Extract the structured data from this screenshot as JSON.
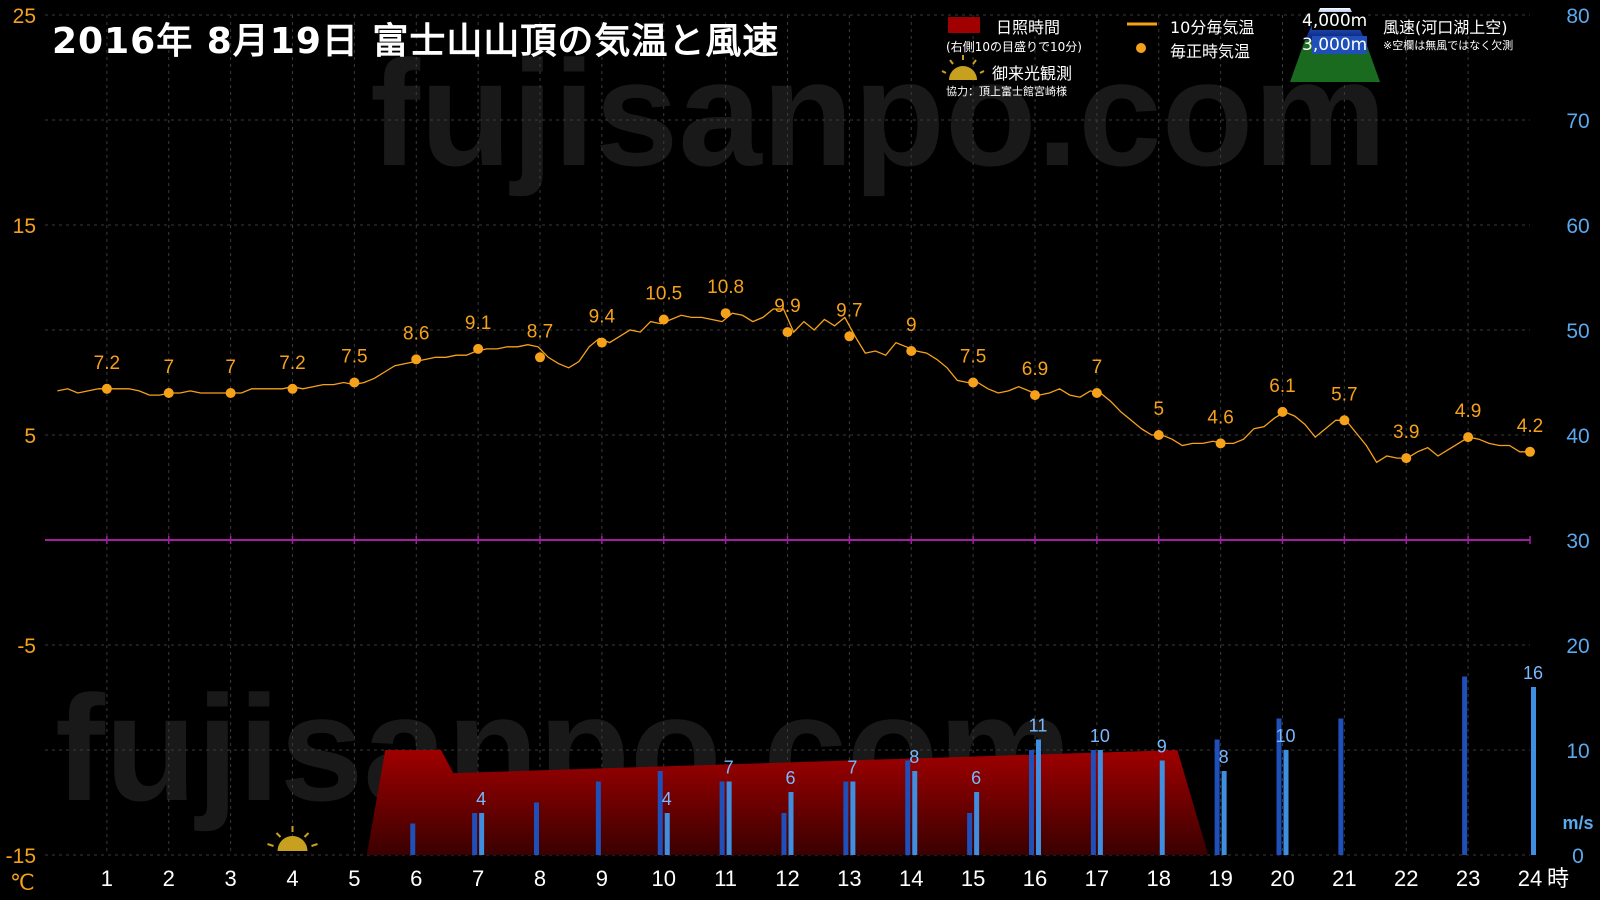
{
  "header": {
    "title": "2016年  8月19日   富士山山頂の気温と風速",
    "watermark": "fujisanpo.com"
  },
  "legend": {
    "sunshine": "日照時間",
    "sunshine_note": "(右側10の目盛りで10分)",
    "temp_10min": "10分毎気温",
    "temp_hourly": "毎正時気温",
    "sunrise": "御来光観測",
    "cooperation": "協力：頂上富士館宮崎様",
    "alt_4000": "4,000m",
    "alt_3000": "3,000m",
    "wind_title": "風速(河口湖上空)",
    "wind_note": "※空欄は無風ではなく欠測"
  },
  "colors": {
    "temperature": "#f6a11a",
    "wind_4000": "#1f4fb8",
    "wind_3000": "#3f8ee0",
    "sunshine": "#a00000",
    "zero_line": "#a020a0",
    "left_axis": "#f6a11a",
    "right_axis": "#5aa8ee"
  },
  "chart_data": {
    "type": "line",
    "xlabel": "時",
    "x_ticks": [
      1,
      2,
      3,
      4,
      5,
      6,
      7,
      8,
      9,
      10,
      11,
      12,
      13,
      14,
      15,
      16,
      17,
      18,
      19,
      20,
      21,
      22,
      23,
      24
    ],
    "xlim": [
      0,
      24
    ],
    "left_axis": {
      "unit": "℃",
      "ticks": [
        25,
        15,
        5,
        -5,
        -15
      ],
      "ylim": [
        -15,
        25
      ]
    },
    "right_axis": {
      "unit": "m/s",
      "ticks": [
        80,
        70,
        60,
        50,
        40,
        30,
        20,
        10,
        0
      ],
      "ylim": [
        0,
        80
      ]
    },
    "temperature_hourly": {
      "name": "毎正時気温",
      "x": [
        1,
        2,
        3,
        4,
        5,
        6,
        7,
        8,
        9,
        10,
        11,
        12,
        13,
        14,
        15,
        16,
        17,
        18,
        19,
        20,
        21,
        22,
        23,
        24
      ],
      "values": [
        7.2,
        7,
        7,
        7.2,
        7.5,
        8.6,
        9.1,
        8.7,
        9.4,
        10.5,
        10.8,
        9.9,
        9.7,
        9,
        7.5,
        6.9,
        7,
        5,
        4.6,
        6.1,
        5.7,
        3.9,
        4.9,
        4.2
      ]
    },
    "temperature_10min": {
      "name": "10分毎気温",
      "values": [
        7.1,
        7.2,
        7.0,
        7.1,
        7.2,
        7.2,
        7.2,
        7.2,
        7.1,
        6.9,
        6.9,
        7.0,
        7.0,
        7.1,
        7.0,
        7.0,
        7.0,
        7.0,
        7.0,
        7.2,
        7.2,
        7.2,
        7.2,
        7.3,
        7.2,
        7.3,
        7.4,
        7.4,
        7.5,
        7.4,
        7.5,
        7.7,
        8.0,
        8.3,
        8.4,
        8.5,
        8.6,
        8.7,
        8.7,
        8.8,
        8.8,
        9.0,
        9.1,
        9.1,
        9.2,
        9.2,
        9.3,
        9.2,
        8.7,
        8.4,
        8.2,
        8.5,
        9.2,
        9.6,
        9.4,
        9.7,
        10.0,
        9.9,
        10.4,
        10.3,
        10.5,
        10.7,
        10.6,
        10.6,
        10.5,
        10.4,
        10.8,
        10.7,
        10.4,
        10.6,
        11.0,
        11.0,
        9.9,
        10.4,
        10.0,
        10.5,
        10.2,
        10.6,
        9.7,
        8.9,
        9.0,
        8.8,
        9.4,
        9.2,
        9.0,
        8.9,
        8.6,
        8.2,
        7.6,
        7.5,
        7.5,
        7.2,
        7.0,
        7.1,
        7.3,
        7.1,
        6.9,
        7.0,
        7.2,
        6.9,
        6.8,
        7.1,
        7.0,
        6.6,
        6.1,
        5.7,
        5.3,
        5.0,
        5.0,
        4.8,
        4.5,
        4.6,
        4.6,
        4.7,
        4.6,
        4.6,
        4.8,
        5.3,
        5.4,
        5.8,
        6.1,
        5.9,
        5.5,
        4.9,
        5.3,
        5.7,
        5.7,
        5.1,
        4.5,
        3.7,
        4.0,
        3.9,
        3.9,
        4.2,
        4.4,
        4.0,
        4.3,
        4.6,
        4.9,
        4.8,
        4.6,
        4.5,
        4.5,
        4.2,
        4.2
      ]
    },
    "wind_4000": {
      "name": "4,000m",
      "x": [
        6,
        7,
        8,
        9,
        10,
        11,
        12,
        13,
        14,
        15,
        16,
        17,
        18,
        19,
        20,
        21,
        23
      ],
      "values": [
        3,
        4,
        5,
        7,
        8,
        7,
        4,
        7,
        9,
        4,
        10,
        10,
        0,
        11,
        13,
        13,
        17
      ]
    },
    "wind_3000": {
      "name": "3,000m",
      "x": [
        7,
        10,
        11,
        12,
        13,
        14,
        15,
        16,
        17,
        18,
        19,
        20,
        24
      ],
      "values": [
        4,
        4,
        7,
        6,
        7,
        8,
        6,
        11,
        10,
        9,
        8,
        10,
        16
      ]
    },
    "sunshine": {
      "name": "日照時間",
      "x": [
        5.2,
        5.5,
        6.4,
        6.6,
        18.3
      ],
      "values": [
        0,
        10,
        10,
        7.8,
        10
      ],
      "end": [
        18.8,
        0
      ]
    },
    "sunrise_hour": 4
  }
}
